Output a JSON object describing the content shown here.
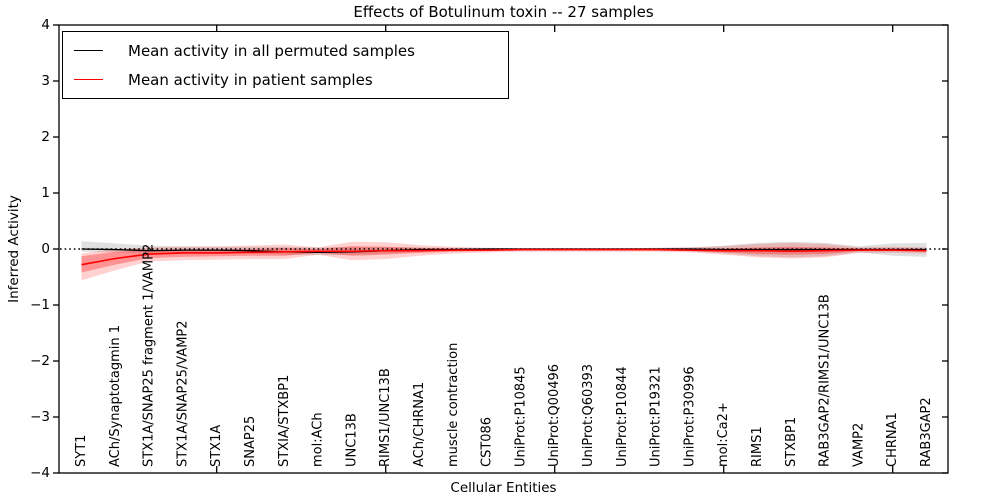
{
  "chart_data": {
    "type": "line",
    "title": "Effects of Botulinum toxin -- 27 samples",
    "xlabel": "Cellular Entities",
    "ylabel": "Inferred Activity",
    "ylim": [
      -4,
      4
    ],
    "yticks": [
      -4,
      -3,
      -2,
      -1,
      0,
      1,
      2,
      3,
      4
    ],
    "ytick_labels": [
      "−4",
      "−3",
      "−2",
      "−1",
      "0",
      "1",
      "2",
      "3",
      "4"
    ],
    "x_major_tick_indices": [
      4,
      9,
      14,
      19,
      24
    ],
    "grid": false,
    "legend_position": "upper left",
    "zero_reference_line": {
      "y": 0,
      "style": "dotted",
      "color": "#000000"
    },
    "categories": [
      "SYT1",
      "ACh/Synaptotagmin 1",
      "STX1A/SNAP25 fragment 1/VAMP2",
      "STX1A/SNAP25/VAMP2",
      "STX1A",
      "SNAP25",
      "STXIA/STXBP1",
      "mol:ACh",
      "UNC13B",
      "RIMS1/UNC13B",
      "ACh/CHRNA1",
      "muscle contraction",
      "CST086",
      "UniProt:P10845",
      "UniProt:Q00496",
      "UniProt:Q60393",
      "UniProt:P10844",
      "UniProt:P19321",
      "UniProt:P30996",
      "mol:Ca2+",
      "RIMS1",
      "STXBP1",
      "RAB3GAP2/RIMS1/UNC13B",
      "VAMP2",
      "CHRNA1",
      "RAB3GAP2"
    ],
    "series": [
      {
        "name": "Mean activity in all permuted samples",
        "color": "#000000",
        "values": [
          0,
          -0.01,
          -0.03,
          -0.02,
          -0.02,
          -0.03,
          -0.05,
          -0.06,
          -0.05,
          -0.03,
          -0.01,
          -0.01,
          0,
          0,
          0,
          0,
          0,
          0,
          0,
          -0.01,
          -0.01,
          -0.01,
          -0.01,
          -0.01,
          -0.01,
          -0.01
        ],
        "band": {
          "color": "rgba(0,0,0,0.12)",
          "low": [
            -0.05,
            -0.06,
            -0.08,
            -0.07,
            -0.07,
            -0.08,
            -0.1,
            -0.11,
            -0.1,
            -0.08,
            -0.05,
            -0.04,
            -0.03,
            -0.02,
            -0.02,
            -0.02,
            -0.02,
            -0.03,
            -0.04,
            -0.08,
            -0.13,
            -0.15,
            -0.13,
            -0.06,
            -0.12,
            -0.14
          ],
          "high": [
            0.14,
            0.1,
            0.06,
            0.05,
            0.04,
            0.04,
            0.04,
            0.03,
            0.04,
            0.04,
            0.03,
            0.02,
            0.02,
            0.02,
            0.02,
            0.02,
            0.02,
            0.02,
            0.03,
            0.06,
            0.11,
            0.13,
            0.11,
            0.05,
            0.1,
            0.11
          ]
        }
      },
      {
        "name": "Mean activity in patient samples",
        "color": "#ff0000",
        "values": [
          -0.28,
          -0.17,
          -0.09,
          -0.07,
          -0.07,
          -0.06,
          -0.05,
          -0.04,
          -0.04,
          -0.03,
          -0.03,
          -0.02,
          -0.02,
          -0.01,
          -0.01,
          -0.01,
          -0.01,
          -0.01,
          -0.02,
          -0.03,
          -0.03,
          -0.04,
          -0.03,
          -0.02,
          -0.02,
          -0.03
        ],
        "band_inner": {
          "color": "rgba(255,0,0,0.30)",
          "low": [
            -0.42,
            -0.28,
            -0.16,
            -0.14,
            -0.13,
            -0.12,
            -0.12,
            -0.07,
            -0.12,
            -0.1,
            -0.07,
            -0.05,
            -0.04,
            -0.03,
            -0.03,
            -0.03,
            -0.03,
            -0.03,
            -0.04,
            -0.06,
            -0.09,
            -0.1,
            -0.09,
            -0.04,
            -0.04,
            -0.05
          ],
          "high": [
            -0.13,
            -0.05,
            -0.02,
            -0.01,
            -0.01,
            0,
            0.02,
            0,
            0.05,
            0.04,
            0.02,
            0.01,
            0,
            0,
            0,
            0,
            0,
            0,
            0,
            0.01,
            0.03,
            0.04,
            0.03,
            0.01,
            0.01,
            0
          ]
        },
        "band_outer": {
          "color": "rgba(255,0,0,0.18)",
          "low": [
            -0.56,
            -0.38,
            -0.22,
            -0.2,
            -0.19,
            -0.18,
            -0.18,
            -0.1,
            -0.2,
            -0.18,
            -0.12,
            -0.08,
            -0.06,
            -0.05,
            -0.05,
            -0.05,
            -0.05,
            -0.05,
            -0.06,
            -0.1,
            -0.15,
            -0.17,
            -0.15,
            -0.07,
            -0.07,
            -0.08
          ],
          "high": [
            -0.08,
            0,
            0.03,
            0.04,
            0.05,
            0.06,
            0.08,
            0.03,
            0.13,
            0.12,
            0.07,
            0.04,
            0.02,
            0.01,
            0.01,
            0.01,
            0.01,
            0.02,
            0.03,
            0.05,
            0.09,
            0.11,
            0.09,
            0.03,
            0.04,
            0.03
          ]
        }
      }
    ]
  }
}
